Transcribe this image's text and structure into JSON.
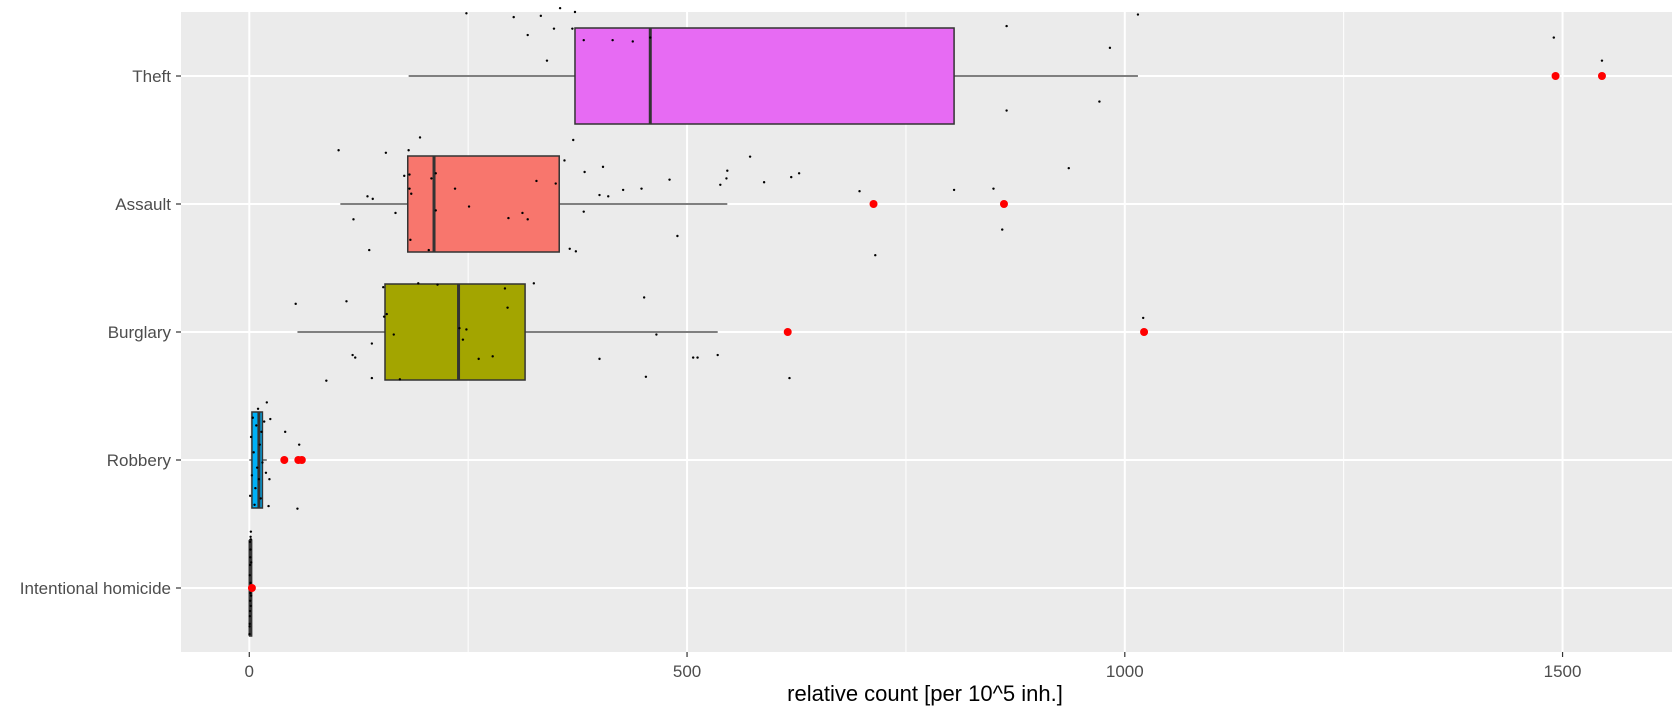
{
  "chart_data": {
    "type": "boxplot",
    "orientation": "horizontal",
    "xlabel": "relative count [per 10^5 inh.]",
    "ylabel": "",
    "xlim": [
      -78,
      1625
    ],
    "x_ticks": [
      0,
      500,
      1000,
      1500
    ],
    "x_tick_labels": [
      "0",
      "500",
      "1000",
      "1500"
    ],
    "grid": true,
    "legend": "none",
    "panel_background": "#ebebeb",
    "grid_color": "#ffffff",
    "outlier_color": "#ff0000",
    "jitter_point_color": "#000000",
    "categories": [
      "Theft",
      "Assault",
      "Burglary",
      "Robbery",
      "Intentional homicide"
    ],
    "series": [
      {
        "category": "Theft",
        "fill": "#e76bf3",
        "whisker_low": 182,
        "q1": 372,
        "median": 458,
        "q3": 805,
        "whisker_high": 1015,
        "outliers": [
          1492,
          1545
        ],
        "points": [
          [
            183,
            0.77
          ],
          [
            400,
            0.93
          ],
          [
            427,
            0.89
          ],
          [
            448,
            0.88
          ],
          [
            480,
            0.81
          ],
          [
            538,
            0.85
          ],
          [
            572,
            0.63
          ],
          [
            588,
            0.83
          ],
          [
            619,
            0.79
          ],
          [
            628,
            0.76
          ],
          [
            697,
            0.9
          ],
          [
            545,
            0.8
          ],
          [
            404,
            0.71
          ],
          [
            382,
            -0.28
          ],
          [
            415,
            -0.28
          ],
          [
            438,
            -0.27
          ],
          [
            458,
            -0.3
          ],
          [
            318,
            -0.32
          ],
          [
            333,
            -0.47
          ],
          [
            348,
            -0.37
          ],
          [
            355,
            -0.53
          ],
          [
            369,
            -0.37
          ],
          [
            372,
            -0.5
          ],
          [
            248,
            -0.49
          ],
          [
            302,
            -0.46
          ],
          [
            340,
            -0.12
          ],
          [
            805,
            0.89
          ],
          [
            865,
            0.27
          ],
          [
            936,
            0.72
          ],
          [
            971,
            0.2
          ],
          [
            983,
            -0.22
          ],
          [
            1015,
            -0.48
          ],
          [
            865,
            -0.39
          ],
          [
            1490,
            -0.3
          ],
          [
            1545,
            -0.12
          ]
        ]
      },
      {
        "category": "Assault",
        "fill": "#f8766d",
        "whisker_low": 104,
        "q1": 181,
        "median": 211,
        "q3": 354,
        "whisker_high": 546,
        "outliers": [
          713,
          862
        ],
        "points": [
          [
            102,
            -0.42
          ],
          [
            119,
            0.12
          ],
          [
            135,
            -0.06
          ],
          [
            137,
            0.36
          ],
          [
            141,
            -0.04
          ],
          [
            156,
            -0.4
          ],
          [
            167,
            0.07
          ],
          [
            177,
            -0.22
          ],
          [
            183,
            -0.12
          ],
          [
            184,
            0.28
          ],
          [
            185,
            -0.08
          ],
          [
            182,
            -0.42
          ],
          [
            195,
            -0.52
          ],
          [
            205,
            0.36
          ],
          [
            208,
            -0.2
          ],
          [
            213,
            -0.24
          ],
          [
            213,
            0.05
          ],
          [
            251,
            0.02
          ],
          [
            235,
            -0.12
          ],
          [
            312,
            0.07
          ],
          [
            318,
            0.12
          ],
          [
            296,
            0.11
          ],
          [
            328,
            -0.18
          ],
          [
            350,
            -0.16
          ],
          [
            360,
            -0.34
          ],
          [
            366,
            0.35
          ],
          [
            373,
            0.37
          ],
          [
            382,
            0.06
          ],
          [
            383,
            -0.25
          ],
          [
            370,
            -0.5
          ],
          [
            410,
            -0.06
          ],
          [
            546,
            -0.26
          ],
          [
            489,
            0.25
          ],
          [
            715,
            0.4
          ],
          [
            860,
            0.2
          ],
          [
            850,
            -0.12
          ]
        ]
      },
      {
        "category": "Burglary",
        "fill": "#a3a500",
        "whisker_low": 55,
        "q1": 155,
        "median": 239,
        "q3": 315,
        "whisker_high": 535,
        "outliers": [
          615,
          1022
        ],
        "points": [
          [
            53,
            -0.22
          ],
          [
            88,
            0.38
          ],
          [
            111,
            -0.24
          ],
          [
            118,
            0.18
          ],
          [
            121,
            0.2
          ],
          [
            140,
            0.09
          ],
          [
            140,
            0.36
          ],
          [
            154,
            -0.12
          ],
          [
            153,
            -0.35
          ],
          [
            157,
            -0.14
          ],
          [
            165,
            0.02
          ],
          [
            172,
            0.37
          ],
          [
            193,
            -0.38
          ],
          [
            215,
            -0.37
          ],
          [
            244,
            0.06
          ],
          [
            240,
            -0.03
          ],
          [
            248,
            -0.02
          ],
          [
            262,
            0.21
          ],
          [
            278,
            0.19
          ],
          [
            292,
            -0.34
          ],
          [
            295,
            -0.19
          ],
          [
            325,
            -0.38
          ],
          [
            400,
            0.21
          ],
          [
            453,
            0.35
          ],
          [
            451,
            -0.27
          ],
          [
            465,
            0.02
          ],
          [
            507,
            0.2
          ],
          [
            512,
            0.2
          ],
          [
            535,
            0.18
          ],
          [
            617,
            0.36
          ],
          [
            1021,
            -0.11
          ]
        ]
      },
      {
        "category": "Robbery",
        "fill": "#00b0f6",
        "whisker_low": 0,
        "q1": 3,
        "median": 11,
        "q3": 15,
        "whisker_high": 20,
        "outliers": [
          40,
          56,
          60
        ],
        "points": [
          [
            1,
            0.28
          ],
          [
            2,
            -0.18
          ],
          [
            3,
            0.12
          ],
          [
            4,
            -0.33
          ],
          [
            5,
            -0.06
          ],
          [
            6,
            0.35
          ],
          [
            7,
            0.22
          ],
          [
            8,
            -0.27
          ],
          [
            9,
            0.06
          ],
          [
            10,
            -0.4
          ],
          [
            11,
            0.15
          ],
          [
            12,
            -0.12
          ],
          [
            13,
            0.3
          ],
          [
            14,
            -0.22
          ],
          [
            15,
            0.02
          ],
          [
            17,
            -0.3
          ],
          [
            19,
            0.1
          ],
          [
            20,
            -0.45
          ],
          [
            22,
            0.36
          ],
          [
            23,
            0.15
          ],
          [
            24,
            -0.32
          ],
          [
            41,
            -0.22
          ],
          [
            55,
            0.38
          ],
          [
            57,
            -0.12
          ],
          [
            60,
            -0.01
          ]
        ]
      },
      {
        "category": "Intentional homicide",
        "fill": "#00bf7d",
        "whisker_low": 0,
        "q1": 0.4,
        "median": 0.8,
        "q3": 1.4,
        "whisker_high": 2.2,
        "outliers": [
          3
        ],
        "points": [
          [
            0.2,
            0.36
          ],
          [
            0.4,
            0.28
          ],
          [
            0.6,
            0.22
          ],
          [
            0.8,
            0.18
          ],
          [
            1,
            0.1
          ],
          [
            1.2,
            0.04
          ],
          [
            1.4,
            -0.04
          ],
          [
            0.5,
            -0.1
          ],
          [
            0.9,
            -0.18
          ],
          [
            1.1,
            -0.24
          ],
          [
            1.3,
            -0.3
          ],
          [
            0.7,
            -0.36
          ],
          [
            1.5,
            -0.4
          ],
          [
            1.8,
            -0.44
          ],
          [
            0.3,
            0.3
          ],
          [
            1.6,
            0.14
          ],
          [
            2.2,
            -0.2
          ],
          [
            2,
            0.06
          ],
          [
            3,
            0
          ],
          [
            1.7,
            -0.38
          ]
        ]
      }
    ]
  }
}
